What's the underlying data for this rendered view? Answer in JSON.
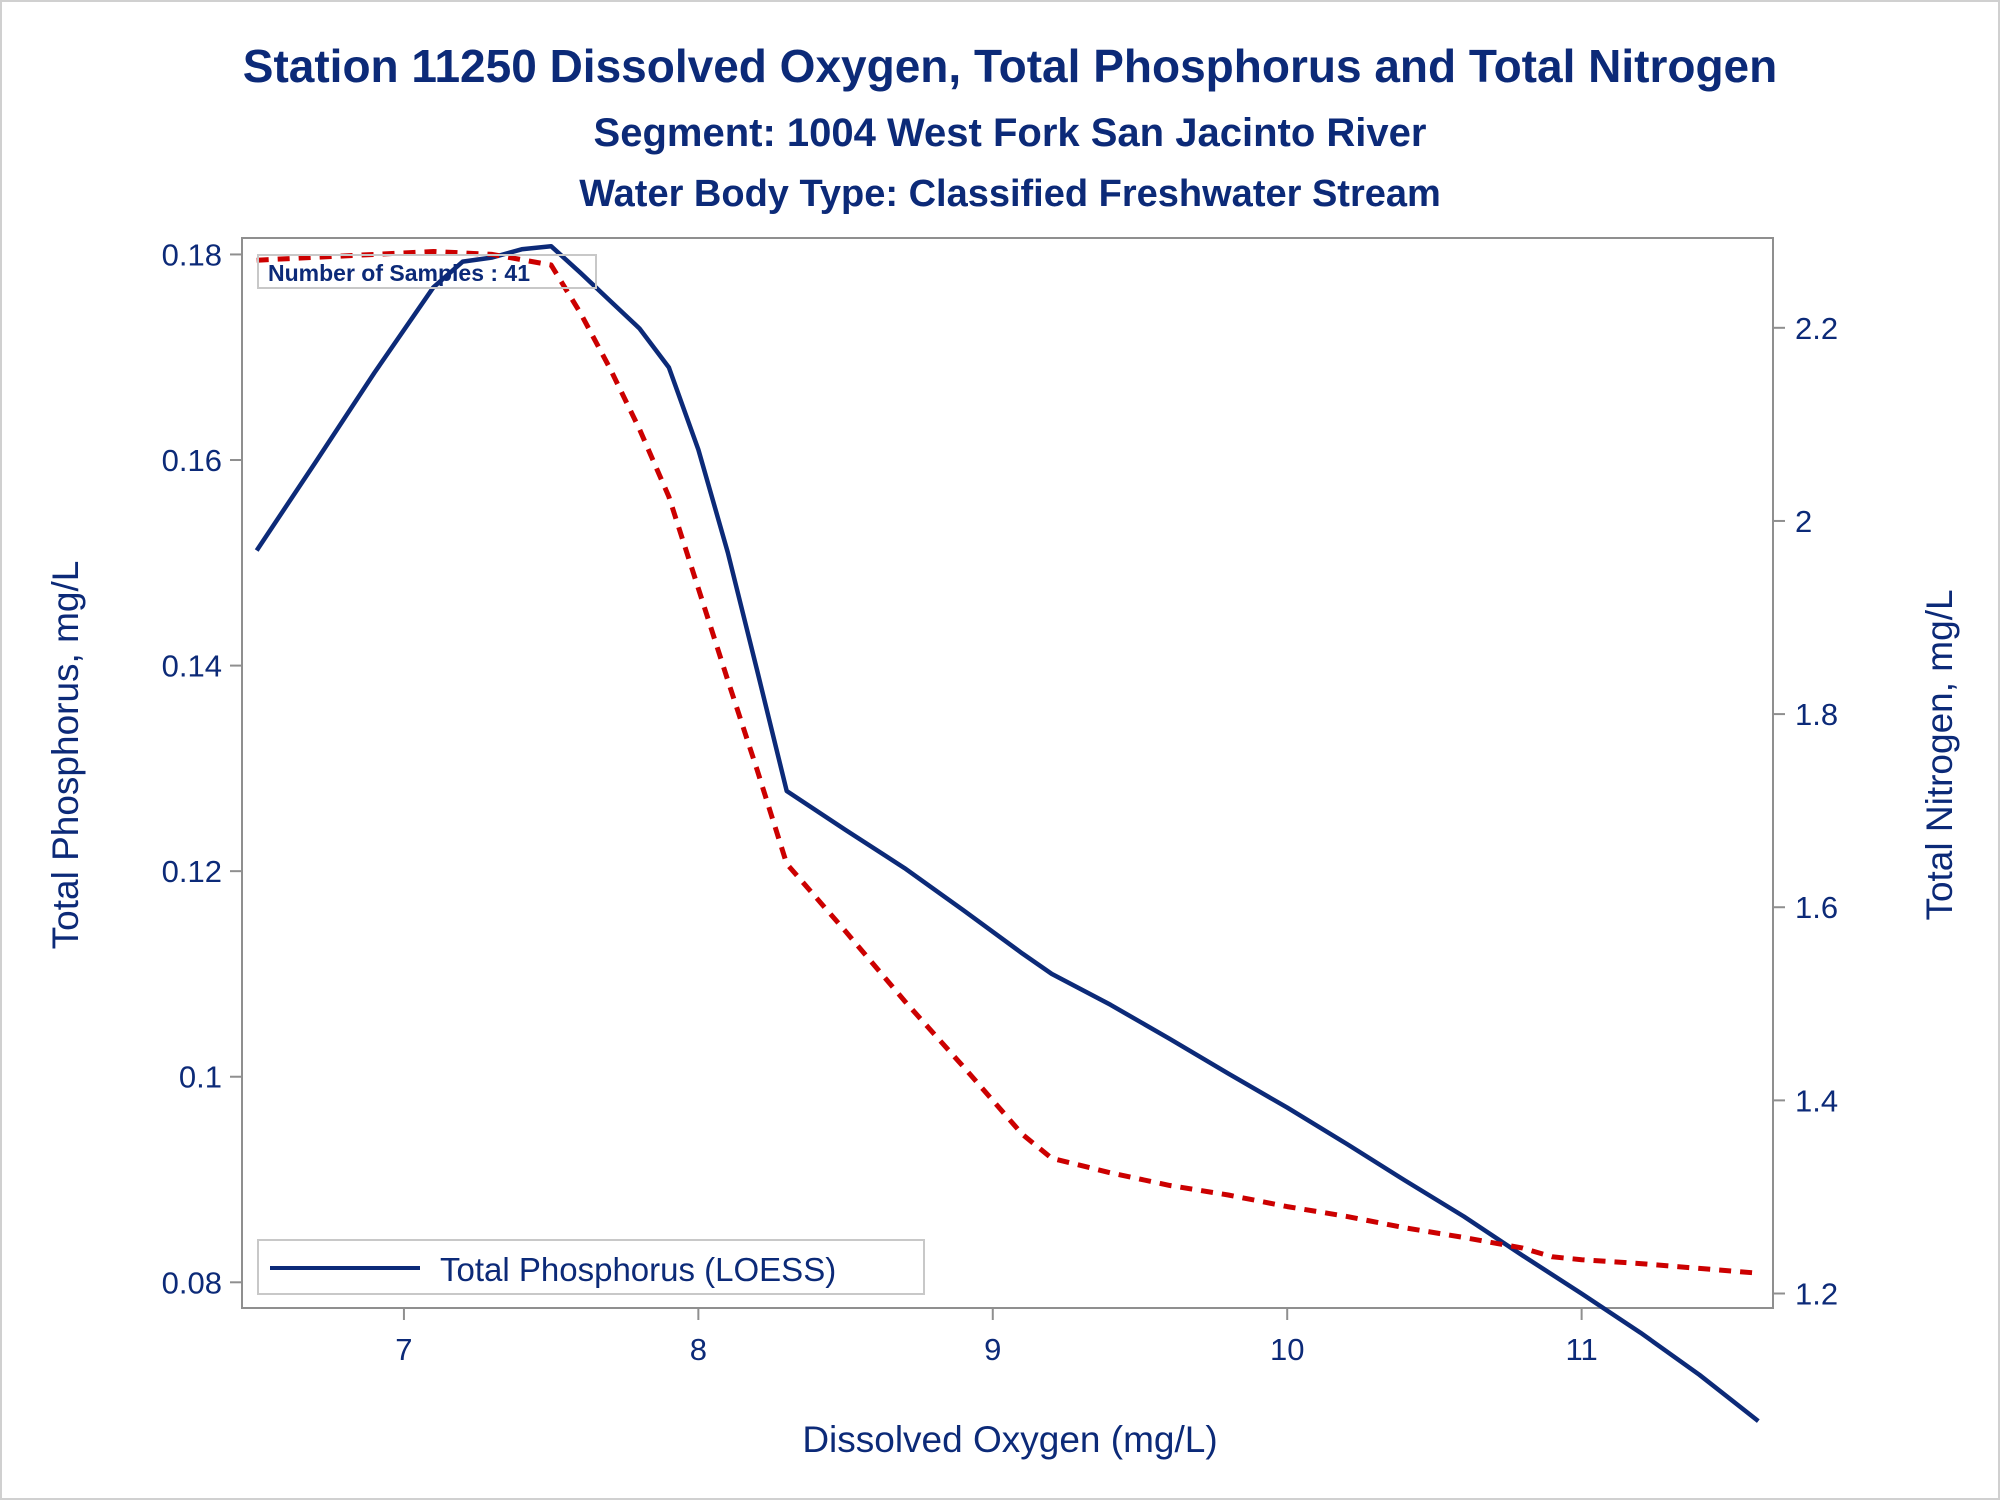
{
  "chart_data": {
    "type": "line",
    "title": "Station 11250  Dissolved Oxygen, Total Phosphorus and Total Nitrogen",
    "subtitle": "Segment: 1004  West Fork San Jacinto River",
    "subtitle2": "Water Body Type: Classified Freshwater Stream",
    "xlabel": "Dissolved Oxygen (mg/L)",
    "ylabel_left": "Total Phosphorus, mg/L",
    "ylabel_right": "Total Nitrogen, mg/L",
    "xlim": [
      6.45,
      11.65
    ],
    "ylim_left": [
      0.0775,
      0.1816
    ],
    "ylim_right": [
      1.185,
      2.293
    ],
    "x_ticks": [
      7,
      8,
      9,
      10,
      11
    ],
    "y_left_ticks": [
      0.08,
      0.1,
      0.12,
      0.14,
      0.16,
      0.18
    ],
    "y_right_ticks": [
      1.2,
      1.4,
      1.6,
      1.8,
      2.0,
      2.2
    ],
    "x_tick_labels": [
      "7",
      "8",
      "9",
      "10",
      "11"
    ],
    "y_left_tick_labels": [
      "0.08",
      "0.1",
      "0.12",
      "0.14",
      "0.16",
      "0.18"
    ],
    "y_right_tick_labels": [
      "1.2",
      "1.4",
      "1.6",
      "1.8",
      "2",
      "2.2"
    ],
    "annotation": "Number of Samples : 41",
    "series": [
      {
        "name": "Total Phosphorus (LOESS)",
        "axis": "left",
        "style": "solid",
        "color": "#0c2a78",
        "x": [
          6.5,
          6.7,
          6.9,
          7.1,
          7.2,
          7.3,
          7.4,
          7.5,
          7.6,
          7.7,
          7.8,
          7.9,
          8.0,
          8.1,
          8.2,
          8.3,
          8.5,
          8.7,
          8.9,
          9.1,
          9.2,
          9.4,
          9.6,
          9.8,
          10.0,
          10.2,
          10.4,
          10.6,
          10.8,
          11.0,
          11.2,
          11.4,
          11.6
        ],
        "y": [
          0.1512,
          0.1598,
          0.1685,
          0.1768,
          0.1793,
          0.1797,
          0.1805,
          0.1808,
          0.1782,
          0.1755,
          0.1728,
          0.169,
          0.161,
          0.151,
          0.1395,
          0.1278,
          0.124,
          0.1203,
          0.1162,
          0.112,
          0.11,
          0.107,
          0.1037,
          0.1003,
          0.097,
          0.0935,
          0.0899,
          0.0864,
          0.0826,
          0.0789,
          0.0751,
          0.071,
          0.0665
        ]
      },
      {
        "name": "",
        "axis": "right",
        "style": "dashed",
        "color": "#cc0000",
        "x": [
          6.5,
          6.7,
          6.9,
          7.1,
          7.3,
          7.5,
          7.6,
          7.7,
          7.8,
          7.9,
          8.0,
          8.1,
          8.2,
          8.3,
          8.5,
          8.7,
          8.9,
          9.1,
          9.2,
          9.4,
          9.6,
          9.8,
          10.0,
          10.2,
          10.4,
          10.6,
          10.8,
          10.9,
          11.0,
          11.2,
          11.4,
          11.6
        ],
        "y": [
          2.27,
          2.273,
          2.276,
          2.279,
          2.276,
          2.265,
          2.215,
          2.158,
          2.095,
          2.025,
          1.93,
          1.835,
          1.742,
          1.645,
          1.575,
          1.503,
          1.435,
          1.365,
          1.34,
          1.325,
          1.312,
          1.302,
          1.29,
          1.28,
          1.268,
          1.258,
          1.247,
          1.238,
          1.235,
          1.231,
          1.226,
          1.221
        ]
      }
    ]
  }
}
